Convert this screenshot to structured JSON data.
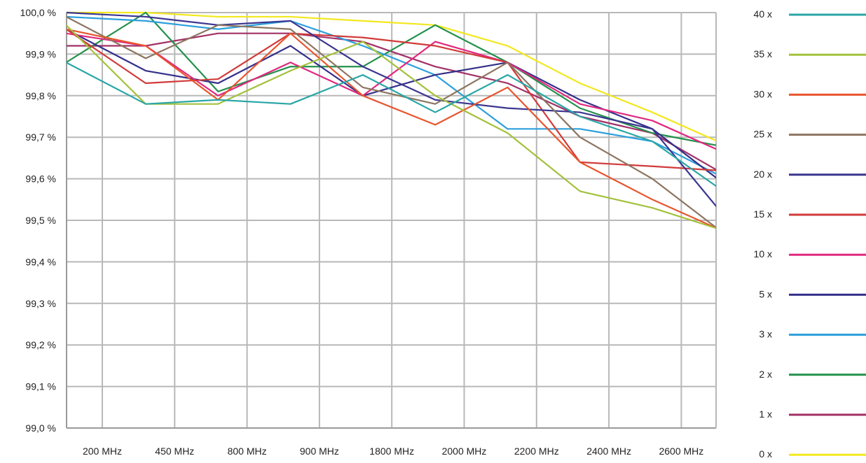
{
  "chart_data": {
    "type": "line",
    "title": "",
    "xlabel": "",
    "ylabel": "",
    "categories": [
      "200 MHz",
      "450 MHz",
      "800 MHz",
      "900 MHz",
      "1800 MHz",
      "2000 MHz",
      "2200 MHz",
      "2400 MHz",
      "2600 MHz"
    ],
    "y_tick_labels": [
      "99,0 %",
      "99,1 %",
      "99,2 %",
      "99,3 %",
      "99,4 %",
      "99,5 %",
      "99,6 %",
      "99,7 %",
      "99,8 %",
      "99,9 %",
      "100,0 %"
    ],
    "ylim": [
      99.0,
      100.0
    ],
    "grid": true,
    "legend_position": "right",
    "series": [
      {
        "name": "40 x",
        "color": "#2aa6a6",
        "x": [
          -0.5,
          0.6,
          1.6,
          2.6,
          3.6,
          4.6,
          5.6,
          6.6,
          7.6,
          8.5
        ],
        "values": [
          99.88,
          99.78,
          99.79,
          99.78,
          99.85,
          99.76,
          99.85,
          99.75,
          99.69,
          99.58
        ]
      },
      {
        "name": "35 x",
        "color": "#a3c13c",
        "x": [
          -0.5,
          0.6,
          1.6,
          2.6,
          3.6,
          4.6,
          5.6,
          6.6,
          7.6,
          8.5
        ],
        "values": [
          99.97,
          99.78,
          99.78,
          99.86,
          99.93,
          99.8,
          99.71,
          99.57,
          99.53,
          99.48
        ]
      },
      {
        "name": "30 x",
        "color": "#e8552d",
        "x": [
          -0.5,
          0.6,
          1.6,
          2.6,
          3.6,
          4.6,
          5.6,
          6.6,
          7.6,
          8.5
        ],
        "values": [
          99.96,
          99.92,
          99.79,
          99.95,
          99.8,
          99.73,
          99.82,
          99.64,
          99.55,
          99.48
        ]
      },
      {
        "name": "25 x",
        "color": "#8c7560",
        "x": [
          -0.5,
          0.6,
          1.6,
          2.6,
          3.6,
          4.6,
          5.6,
          6.6,
          7.6,
          8.5
        ],
        "values": [
          99.99,
          99.89,
          99.97,
          99.96,
          99.82,
          99.78,
          99.88,
          99.7,
          99.6,
          99.48
        ]
      },
      {
        "name": "20 x",
        "color": "#3a3590",
        "x": [
          -0.5,
          0.6,
          1.6,
          2.6,
          3.6,
          4.6,
          5.6,
          6.6,
          7.6,
          8.5
        ],
        "values": [
          100.0,
          99.99,
          99.97,
          99.98,
          99.87,
          99.79,
          99.77,
          99.76,
          99.72,
          99.53
        ]
      },
      {
        "name": "15 x",
        "color": "#d23a3a",
        "x": [
          -0.5,
          0.6,
          1.6,
          2.6,
          3.6,
          4.6,
          5.6,
          6.6,
          7.6,
          8.5
        ],
        "values": [
          99.96,
          99.83,
          99.84,
          99.95,
          99.94,
          99.92,
          99.88,
          99.64,
          99.63,
          99.62
        ]
      },
      {
        "name": "10 x",
        "color": "#e0297f",
        "x": [
          -0.5,
          0.6,
          1.6,
          2.6,
          3.6,
          4.6,
          5.6,
          6.6,
          7.6,
          8.5
        ],
        "values": [
          99.95,
          99.92,
          99.8,
          99.88,
          99.8,
          99.93,
          99.88,
          99.78,
          99.74,
          99.67
        ]
      },
      {
        "name": "5 x",
        "color": "#34308a",
        "x": [
          -0.5,
          0.6,
          1.6,
          2.6,
          3.6,
          4.6,
          5.6,
          6.6,
          7.6,
          8.5
        ],
        "values": [
          99.96,
          99.86,
          99.83,
          99.92,
          99.8,
          99.85,
          99.88,
          99.79,
          99.72,
          99.6
        ]
      },
      {
        "name": "3 x",
        "color": "#2b9fdc",
        "x": [
          -0.5,
          0.6,
          1.6,
          2.6,
          3.6,
          4.6,
          5.6,
          6.6,
          7.6,
          8.5
        ],
        "values": [
          99.99,
          99.98,
          99.96,
          99.98,
          99.92,
          99.85,
          99.72,
          99.72,
          99.69,
          99.61
        ]
      },
      {
        "name": "2 x",
        "color": "#23914b",
        "x": [
          -0.5,
          0.6,
          1.6,
          2.6,
          3.6,
          4.6,
          5.6,
          6.6,
          7.6,
          8.5
        ],
        "values": [
          99.88,
          100.0,
          99.81,
          99.87,
          99.87,
          99.97,
          99.88,
          99.77,
          99.71,
          99.68
        ]
      },
      {
        "name": "1 x",
        "color": "#a23067",
        "x": [
          -0.5,
          0.6,
          1.6,
          2.6,
          3.6,
          4.6,
          5.6,
          6.6,
          7.6,
          8.5
        ],
        "values": [
          99.92,
          99.92,
          99.95,
          99.95,
          99.93,
          99.87,
          99.83,
          99.75,
          99.71,
          99.62
        ]
      },
      {
        "name": "0 x",
        "color": "#f2e81e",
        "x": [
          -0.5,
          0.6,
          1.6,
          2.6,
          3.6,
          4.6,
          5.6,
          6.6,
          7.6,
          8.5
        ],
        "values": [
          100.0,
          100.0,
          99.99,
          99.99,
          99.98,
          99.97,
          99.92,
          99.83,
          99.76,
          99.69
        ]
      }
    ]
  }
}
